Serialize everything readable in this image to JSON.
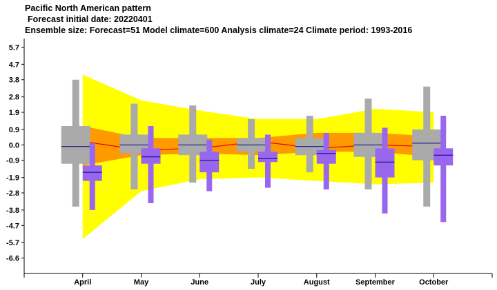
{
  "titles": {
    "line1": "Pacific North American pattern",
    "line2": "Forecast initial date: 20220401",
    "line3": "Ensemble size: Forecast=51 Model climate=600 Analysis climate=24   Climate period: 1993-2016"
  },
  "chart_data": {
    "type": "box",
    "title": "Pacific North American pattern",
    "categories": [
      "April",
      "May",
      "June",
      "July",
      "August",
      "September",
      "October"
    ],
    "ylim": [
      -7.5,
      6.2
    ],
    "yticks": [
      5.7,
      4.7,
      3.8,
      2.8,
      1.9,
      0.9,
      0.0,
      -0.9,
      -1.9,
      -2.8,
      -3.8,
      -4.7,
      -5.7,
      -6.6
    ],
    "ytick_labels": [
      "5.7",
      "4.7",
      "3.8",
      "2.8",
      "1.9",
      "0.9",
      "0.0",
      "-0.9",
      "-1.9",
      "-2.8",
      "-3.8",
      "-4.7",
      "-5.7",
      "-6.6"
    ],
    "colors": {
      "analysis_outer": "#ffff00",
      "analysis_inner": "#ff9900",
      "analysis_median": "#dd0000",
      "model_climate": "#aaaaaa",
      "forecast": "#9966ee",
      "median_line": "#000080"
    },
    "analysis_climate_band": {
      "p_low": [
        -5.5,
        -2.7,
        -2.0,
        -1.9,
        -2.1,
        -2.3,
        -2.2
      ],
      "p_high": [
        4.1,
        2.6,
        2.0,
        1.5,
        1.5,
        2.1,
        1.9
      ],
      "q_low": [
        -1.2,
        -0.6,
        -0.5,
        -0.6,
        -0.4,
        -0.4,
        -0.7
      ],
      "q_high": [
        1.1,
        0.4,
        0.4,
        0.4,
        0.7,
        0.7,
        0.5
      ],
      "median": [
        0.2,
        -0.3,
        -0.2,
        0.2,
        -0.2,
        0.0,
        -0.1
      ]
    },
    "series": [
      {
        "name": "Model climate",
        "min": [
          -3.6,
          -2.6,
          -2.2,
          -1.4,
          -1.6,
          -2.6,
          -3.6
        ],
        "q1": [
          -1.1,
          -0.5,
          -0.6,
          -0.4,
          -0.6,
          -0.7,
          -0.9
        ],
        "median": [
          -0.1,
          0.0,
          0.0,
          0.0,
          -0.1,
          0.0,
          0.1
        ],
        "q3": [
          1.1,
          0.6,
          0.6,
          0.4,
          0.4,
          0.7,
          0.9
        ],
        "max": [
          3.8,
          2.4,
          2.3,
          1.5,
          1.7,
          2.7,
          3.4
        ]
      },
      {
        "name": "Forecast",
        "min": [
          -3.8,
          -3.4,
          -2.7,
          -2.5,
          -2.6,
          -4.0,
          -4.5
        ],
        "q1": [
          -2.1,
          -1.1,
          -1.6,
          -1.0,
          -1.1,
          -1.9,
          -1.2
        ],
        "median": [
          -1.6,
          -0.7,
          -0.9,
          -0.8,
          -0.5,
          -1.0,
          -0.6
        ],
        "q3": [
          -1.2,
          -0.2,
          -0.4,
          -0.4,
          -0.3,
          -0.2,
          -0.2
        ],
        "max": [
          0.1,
          1.1,
          0.3,
          0.6,
          0.7,
          1.0,
          1.7
        ]
      }
    ]
  }
}
